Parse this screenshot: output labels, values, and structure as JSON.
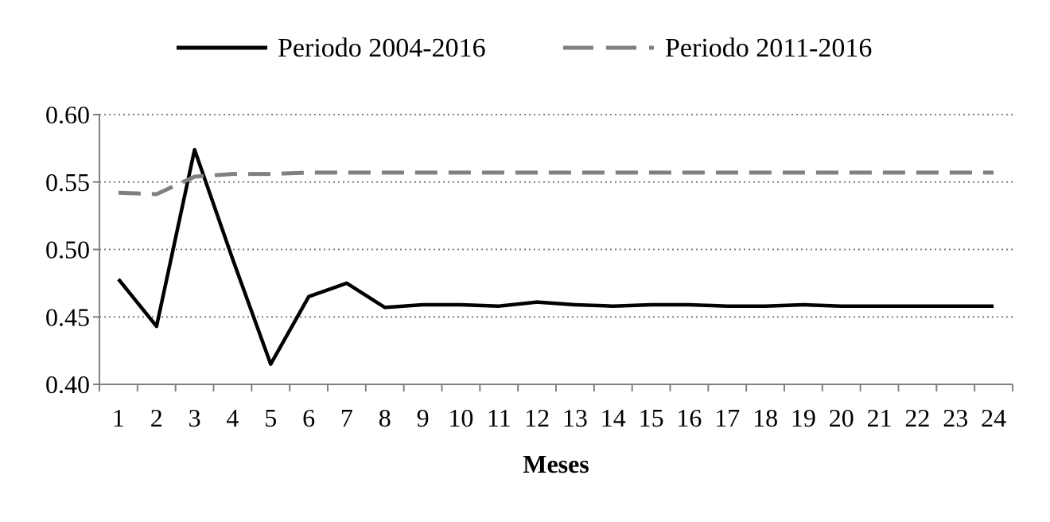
{
  "chart_data": {
    "type": "line",
    "title": "",
    "xlabel": "Meses",
    "ylabel": "",
    "x": [
      1,
      2,
      3,
      4,
      5,
      6,
      7,
      8,
      9,
      10,
      11,
      12,
      13,
      14,
      15,
      16,
      17,
      18,
      19,
      20,
      21,
      22,
      23,
      24
    ],
    "x_tick_labels": [
      "1",
      "2",
      "3",
      "4",
      "5",
      "6",
      "7",
      "8",
      "9",
      "10",
      "11",
      "12",
      "13",
      "14",
      "15",
      "16",
      "17",
      "18",
      "19",
      "20",
      "21",
      "22",
      "23",
      "24"
    ],
    "ylim": [
      0.4,
      0.6
    ],
    "y_ticks": [
      0.4,
      0.45,
      0.5,
      0.55,
      0.6
    ],
    "y_tick_labels": [
      "0.40",
      "0.45",
      "0.50",
      "0.55",
      "0.60"
    ],
    "grid": "horizontal dotted",
    "legend_position": "top-center",
    "series": [
      {
        "name": "Periodo 2004-2016",
        "color": "#000000",
        "style": "solid",
        "values": [
          0.478,
          0.443,
          0.574,
          0.493,
          0.415,
          0.465,
          0.475,
          0.457,
          0.459,
          0.459,
          0.458,
          0.461,
          0.459,
          0.458,
          0.459,
          0.459,
          0.458,
          0.458,
          0.459,
          0.458,
          0.458,
          0.458,
          0.458,
          0.458
        ]
      },
      {
        "name": "Periodo 2011-2016",
        "color": "#808080",
        "style": "dashed",
        "values": [
          0.542,
          0.541,
          0.554,
          0.556,
          0.556,
          0.557,
          0.557,
          0.557,
          0.557,
          0.557,
          0.557,
          0.557,
          0.557,
          0.557,
          0.557,
          0.557,
          0.557,
          0.557,
          0.557,
          0.557,
          0.557,
          0.557,
          0.557,
          0.557
        ]
      }
    ]
  }
}
